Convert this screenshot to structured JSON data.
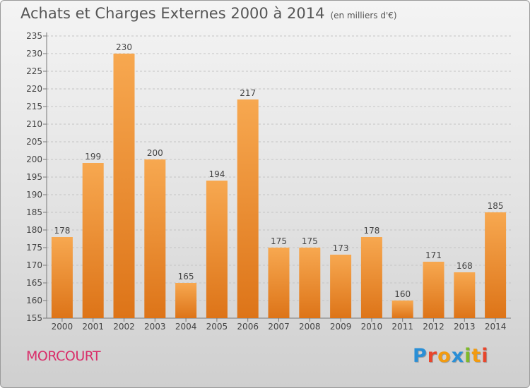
{
  "header": {
    "title": "Achats et Charges Externes 2000 à 2014",
    "unit": "(en milliers d'€)"
  },
  "footer": {
    "place": "MORCOURT",
    "logo": "Proxiti"
  },
  "colors": {
    "bar_top": "#f7a850",
    "bar_bottom": "#dd7418",
    "place": "#d92e6a",
    "logo": [
      "#2a8fd6",
      "#e8462c",
      "#f29b10",
      "#2a8fd6",
      "#7fb92a",
      "#f29b10",
      "#e8462c"
    ]
  },
  "chart_data": {
    "type": "bar",
    "title": "Achats et Charges Externes 2000 à 2014",
    "subtitle": "(en milliers d'€)",
    "xlabel": "",
    "ylabel": "",
    "categories": [
      "2000",
      "2001",
      "2002",
      "2003",
      "2004",
      "2005",
      "2006",
      "2007",
      "2008",
      "2009",
      "2010",
      "2011",
      "2012",
      "2013",
      "2014"
    ],
    "values": [
      178,
      199,
      230,
      200,
      165,
      194,
      217,
      175,
      175,
      173,
      178,
      160,
      171,
      168,
      185
    ],
    "ylim": [
      155,
      235
    ],
    "yticks": [
      155,
      160,
      165,
      170,
      175,
      180,
      185,
      190,
      195,
      200,
      205,
      210,
      215,
      220,
      225,
      230,
      235
    ],
    "grid": "horizontal dashed",
    "data_labels": true
  }
}
